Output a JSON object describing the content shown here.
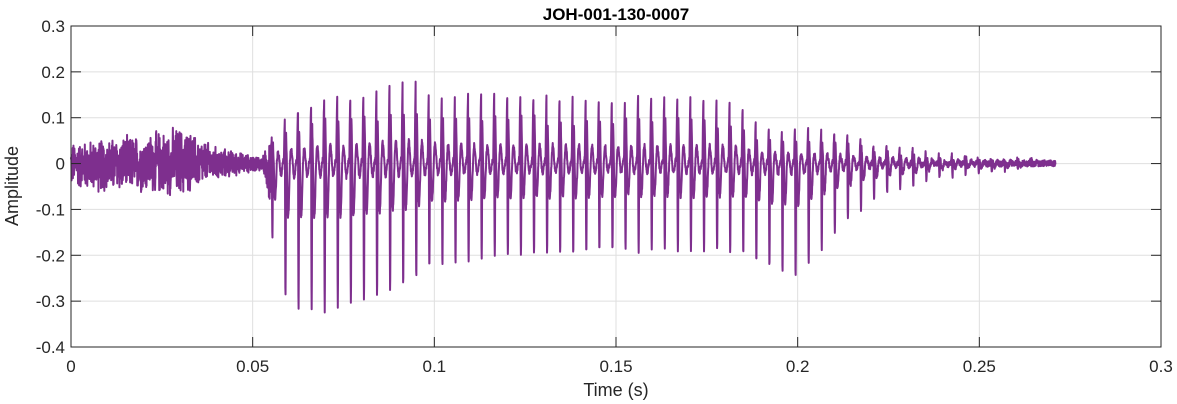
{
  "chart_data": {
    "type": "line",
    "title": "JOH-001-130-0007",
    "xlabel": "Time (s)",
    "ylabel": "Amplitude",
    "xlim": [
      0,
      0.3
    ],
    "ylim": [
      -0.4,
      0.3
    ],
    "xticks": [
      0,
      0.05,
      0.1,
      0.15,
      0.2,
      0.25,
      0.3
    ],
    "xtick_labels": [
      "0",
      "0.05",
      "0.1",
      "0.15",
      "0.2",
      "0.25",
      "0.3"
    ],
    "yticks": [
      -0.4,
      -0.3,
      -0.2,
      -0.1,
      0,
      0.1,
      0.2,
      0.3
    ],
    "ytick_labels": [
      "-0.4",
      "-0.3",
      "-0.2",
      "-0.1",
      "0",
      "0.1",
      "0.2",
      "0.3"
    ],
    "grid": true,
    "line_color": "#7E2F8E",
    "signal_duration": 0.271,
    "voicing_onset": 0.055,
    "pitch_period": 0.0036,
    "envelope": {
      "t": [
        0,
        0.01,
        0.02,
        0.03,
        0.04,
        0.05,
        0.053,
        0.056,
        0.06,
        0.065,
        0.07,
        0.08,
        0.09,
        0.095,
        0.1,
        0.12,
        0.15,
        0.18,
        0.185,
        0.19,
        0.2,
        0.21,
        0.22,
        0.23,
        0.24,
        0.25,
        0.26,
        0.271
      ],
      "max": [
        0.05,
        0.06,
        0.07,
        0.09,
        0.04,
        0.02,
        0.02,
        0.11,
        0.16,
        0.17,
        0.2,
        0.21,
        0.26,
        0.26,
        0.22,
        0.21,
        0.21,
        0.2,
        0.18,
        0.11,
        0.11,
        0.1,
        0.06,
        0.05,
        0.03,
        0.02,
        0.015,
        0.01
      ],
      "min": [
        -0.06,
        -0.07,
        -0.07,
        -0.08,
        -0.04,
        -0.02,
        -0.02,
        -0.2,
        -0.32,
        -0.31,
        -0.32,
        -0.3,
        -0.27,
        -0.25,
        -0.22,
        -0.2,
        -0.19,
        -0.19,
        -0.2,
        -0.22,
        -0.25,
        -0.15,
        -0.08,
        -0.05,
        -0.03,
        -0.02,
        -0.01,
        0
      ]
    }
  }
}
